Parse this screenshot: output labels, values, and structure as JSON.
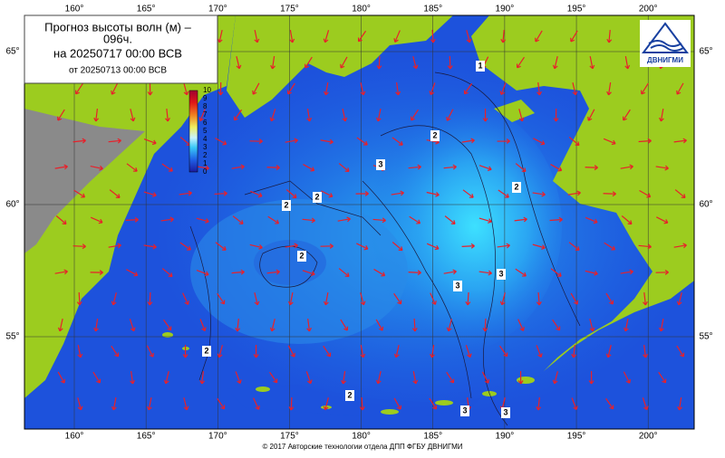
{
  "map": {
    "title_line1": "Прогноз высоты волн (м) –",
    "title_line2": "096ч.",
    "valid_time": "на 20250717 00:00 ВСВ",
    "issued": "от 20250713 00:00 ВСВ",
    "lon_ticks": [
      {
        "value": 160,
        "label": "160°"
      },
      {
        "value": 165,
        "label": "165°"
      },
      {
        "value": 170,
        "label": "170°"
      },
      {
        "value": 175,
        "label": "175°"
      },
      {
        "value": 180,
        "label": "180°"
      },
      {
        "value": 185,
        "label": "185°"
      },
      {
        "value": 190,
        "label": "190°"
      },
      {
        "value": 195,
        "label": "195°"
      },
      {
        "value": 200,
        "label": "200°"
      }
    ],
    "lat_ticks": [
      {
        "value": 65,
        "label": "65°"
      },
      {
        "value": 60,
        "label": "60°"
      },
      {
        "value": 55,
        "label": "55°"
      }
    ],
    "colorbar_ticks": [
      10,
      9,
      8,
      7,
      6,
      5,
      4,
      3,
      2,
      1,
      0
    ],
    "contour_labels": [
      "1",
      "2",
      "3",
      "2",
      "2",
      "2",
      "2",
      "2",
      "3",
      "3",
      "3",
      "3",
      "2"
    ],
    "logo": "ДВНИГМИ",
    "footer": "© 2017 Авторские технологии отдела ДПП ФГБУ ДВНИГМИ"
  }
}
